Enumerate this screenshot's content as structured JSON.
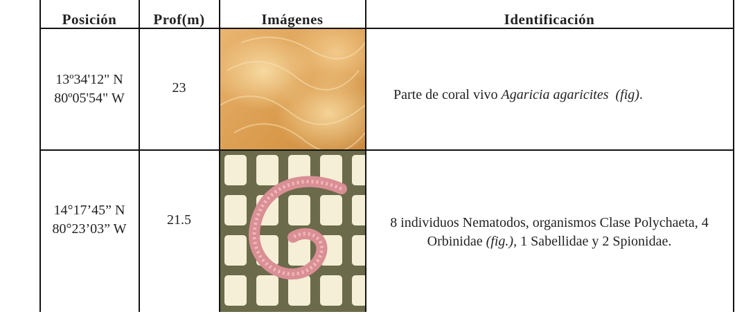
{
  "table": {
    "header": [
      "Posición",
      "Prof(m)",
      "Imágenes",
      "Identificación"
    ],
    "rows": [
      {
        "position": [
          "13º34'12\" N",
          "80º05'54\" W"
        ],
        "depth": "23",
        "identification": [
          "Parte de coral vivo ",
          "Agaricia agaricites  (fig)",
          "."
        ]
      },
      {
        "position": [
          "14°17’45” N",
          "80°23’03” W"
        ],
        "depth": "21.5",
        "identification": [
          "8 individuos Nematodos, organismos Clase Polychaeta, 4 Orbinidae ",
          "(fig.)",
          ", 1 Sabellidae y 2 Spionidae."
        ]
      }
    ]
  }
}
